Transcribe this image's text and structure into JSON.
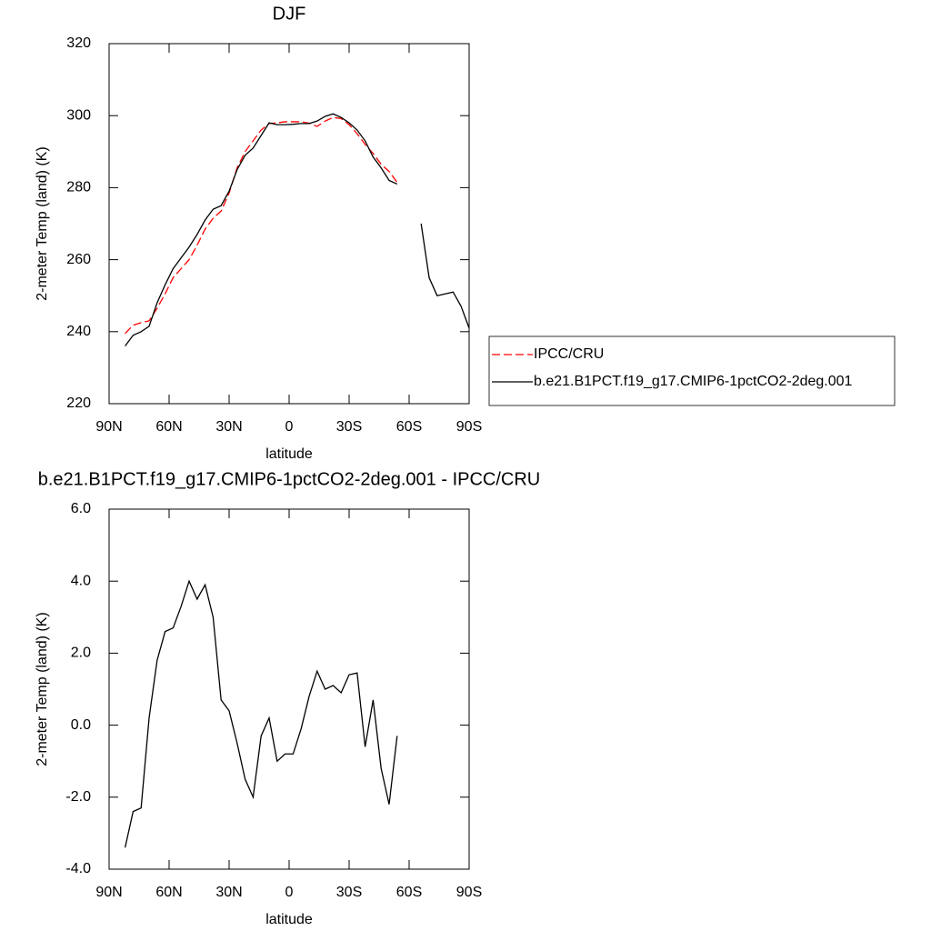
{
  "chart_data": [
    {
      "type": "line",
      "title": "DJF",
      "xlabel": "latitude",
      "ylabel": "2-meter Temp (land) (K)",
      "x": [
        82,
        78,
        74,
        70,
        66,
        62,
        58,
        54,
        50,
        46,
        42,
        38,
        34,
        30,
        26,
        22,
        18,
        14,
        10,
        6,
        2,
        -2,
        -6,
        -10,
        -14,
        -18,
        -22,
        -26,
        -30,
        -34,
        -38,
        -42,
        -46,
        -50,
        -54,
        -58,
        -62,
        -66,
        -70,
        -74,
        -78,
        -82,
        -86,
        -90
      ],
      "series": [
        {
          "name": "IPCC/CRU",
          "color": "#ff0000",
          "line_style": "dashed",
          "values": [
            239.5,
            241.8,
            242.5,
            243,
            246.5,
            250.5,
            255,
            257.5,
            260,
            264,
            268.5,
            271.5,
            273.5,
            278.5,
            285.5,
            290,
            293,
            296,
            297.8,
            298,
            298.3,
            298.3,
            298.3,
            297.9,
            297,
            298.5,
            299.5,
            299.2,
            297.5,
            295,
            292,
            289.5,
            286.5,
            284.5,
            281.5,
            null,
            null,
            null,
            null,
            null,
            null,
            null,
            null,
            null
          ]
        },
        {
          "name": "b.e21.B1PCT.f19_g17.CMIP6-1pctCO2-2deg.001",
          "color": "#000000",
          "line_style": "solid",
          "values": [
            236,
            239,
            240,
            241.5,
            248,
            253,
            257.5,
            260.5,
            263.5,
            267,
            271,
            274,
            275,
            279,
            285,
            289,
            291,
            294.5,
            298,
            297.5,
            297.5,
            297.6,
            297.8,
            297.8,
            298.5,
            299.8,
            300.5,
            299.5,
            298,
            296,
            293,
            288.5,
            285.5,
            282,
            281,
            null,
            null,
            270,
            255,
            250,
            250.5,
            251,
            247,
            241
          ]
        }
      ],
      "xlim": [
        90,
        -90
      ],
      "xticks": [
        {
          "value": 90,
          "label": "90N"
        },
        {
          "value": 60,
          "label": "60N"
        },
        {
          "value": 30,
          "label": "30N"
        },
        0,
        {
          "value": -30,
          "label": "30S"
        },
        {
          "value": -60,
          "label": "60S"
        },
        {
          "value": -90,
          "label": "90S"
        }
      ],
      "ylim": [
        220,
        320
      ],
      "yticks": [
        220,
        240,
        260,
        280,
        300,
        320
      ],
      "legend": "right"
    },
    {
      "type": "line",
      "title": "b.e21.B1PCT.f19_g17.CMIP6-1pctCO2-2deg.001 - IPCC/CRU",
      "xlabel": "latitude",
      "ylabel": "2-meter Temp (land) (K)",
      "x": [
        82,
        78,
        74,
        70,
        66,
        62,
        58,
        54,
        50,
        46,
        42,
        38,
        34,
        30,
        26,
        22,
        18,
        14,
        10,
        6,
        2,
        -2,
        -6,
        -10,
        -14,
        -18,
        -22,
        -26,
        -30,
        -34,
        -38,
        -42,
        -46,
        -50,
        -54
      ],
      "series": [
        {
          "color": "#000000",
          "line_style": "solid",
          "values": [
            -3.4,
            -2.4,
            -2.3,
            0.2,
            1.8,
            2.6,
            2.7,
            3.3,
            4.0,
            3.5,
            3.9,
            3.0,
            0.7,
            0.4,
            -0.5,
            -1.5,
            -2.0,
            -0.3,
            0.2,
            -1.0,
            -0.8,
            -0.8,
            -0.1,
            0.8,
            1.5,
            1.0,
            1.1,
            0.9,
            1.4,
            1.45,
            -0.6,
            0.7,
            -1.2,
            -2.2,
            -0.3
          ]
        }
      ],
      "xlim": [
        90,
        -90
      ],
      "xticks": [
        {
          "value": 90,
          "label": "90N"
        },
        {
          "value": 60,
          "label": "60N"
        },
        {
          "value": 30,
          "label": "30N"
        },
        0,
        {
          "value": -30,
          "label": "30S"
        },
        {
          "value": -60,
          "label": "60S"
        },
        {
          "value": -90,
          "label": "90S"
        }
      ],
      "ylim": [
        -4,
        6
      ],
      "yticks": [
        {
          "value": -4,
          "label": "-4.0"
        },
        {
          "value": -2,
          "label": "-2.0"
        },
        {
          "value": 0,
          "label": "0.0"
        },
        {
          "value": 2,
          "label": "2.0"
        },
        {
          "value": 4,
          "label": "4.0"
        },
        {
          "value": 6,
          "label": "6.0"
        }
      ]
    }
  ]
}
